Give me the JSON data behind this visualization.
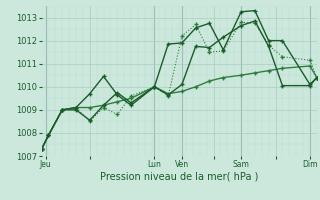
{
  "xlabel": "Pression niveau de la mer( hPa )",
  "bg_color": "#cce8dc",
  "grid_color_minor": "#b8ddd0",
  "grid_color_major": "#a8cec0",
  "line_color_dark": "#1a5c2a",
  "line_color_mid": "#2e7d3e",
  "ylim": [
    1007.0,
    1013.5
  ],
  "xlim": [
    0,
    20
  ],
  "xtick_labels": [
    "Jeu",
    "",
    "Lun",
    "Ven",
    "",
    "Sam",
    "",
    "Dim"
  ],
  "xtick_positions": [
    0.3,
    3.5,
    8.2,
    10.2,
    12.5,
    14.5,
    17.0,
    19.5
  ],
  "ytick_values": [
    1007,
    1008,
    1009,
    1010,
    1011,
    1012,
    1013
  ],
  "vline_positions": [
    0.3,
    8.2,
    10.2,
    14.5,
    19.5
  ],
  "vline_color": "#8899aa",
  "series1_x": [
    0,
    0.5,
    1.5,
    2.5,
    3.5,
    4.5,
    5.5,
    6.5,
    8.2,
    9.2,
    10.2,
    11.2,
    12.2,
    13.2,
    14.5,
    15.5,
    16.5,
    17.5,
    19.5,
    20.0
  ],
  "series1_y": [
    1007.3,
    1007.9,
    1009.0,
    1009.1,
    1008.5,
    1009.1,
    1008.8,
    1009.6,
    1010.0,
    1009.6,
    1012.2,
    1012.7,
    1011.5,
    1011.55,
    1012.8,
    1012.75,
    1011.8,
    1011.3,
    1011.15,
    1010.4
  ],
  "series2_x": [
    0,
    0.5,
    1.5,
    2.5,
    3.5,
    4.5,
    5.5,
    6.5,
    8.2,
    9.2,
    10.2,
    11.2,
    12.2,
    13.2,
    14.5,
    15.5,
    16.5,
    17.5,
    19.5,
    20.0
  ],
  "series2_y": [
    1007.3,
    1007.9,
    1009.0,
    1009.1,
    1009.7,
    1010.45,
    1009.65,
    1009.2,
    1010.0,
    1011.85,
    1011.9,
    1012.55,
    1012.75,
    1011.6,
    1013.25,
    1013.3,
    1012.0,
    1012.0,
    1010.1,
    1010.4
  ],
  "series3_x": [
    0,
    0.5,
    1.5,
    2.5,
    3.5,
    4.5,
    5.5,
    6.5,
    8.2,
    9.2,
    10.2,
    11.2,
    12.2,
    13.2,
    14.5,
    15.5,
    16.5,
    17.5,
    19.5,
    20.0
  ],
  "series3_y": [
    1007.3,
    1007.9,
    1009.0,
    1009.0,
    1008.55,
    1009.2,
    1009.75,
    1009.3,
    1010.0,
    1009.65,
    1010.1,
    1011.75,
    1011.7,
    1012.15,
    1012.65,
    1012.85,
    1011.75,
    1010.05,
    1010.05,
    1010.4
  ],
  "series4_x": [
    0,
    0.5,
    1.5,
    2.5,
    3.5,
    4.5,
    5.5,
    6.5,
    8.2,
    9.2,
    10.2,
    11.2,
    12.2,
    13.2,
    14.5,
    15.5,
    16.5,
    17.5,
    19.5,
    20.0
  ],
  "series4_y": [
    1007.3,
    1007.9,
    1009.0,
    1009.1,
    1009.1,
    1009.2,
    1009.35,
    1009.5,
    1010.0,
    1009.7,
    1009.8,
    1010.0,
    1010.25,
    1010.4,
    1010.5,
    1010.6,
    1010.7,
    1010.8,
    1010.9,
    1010.4
  ]
}
